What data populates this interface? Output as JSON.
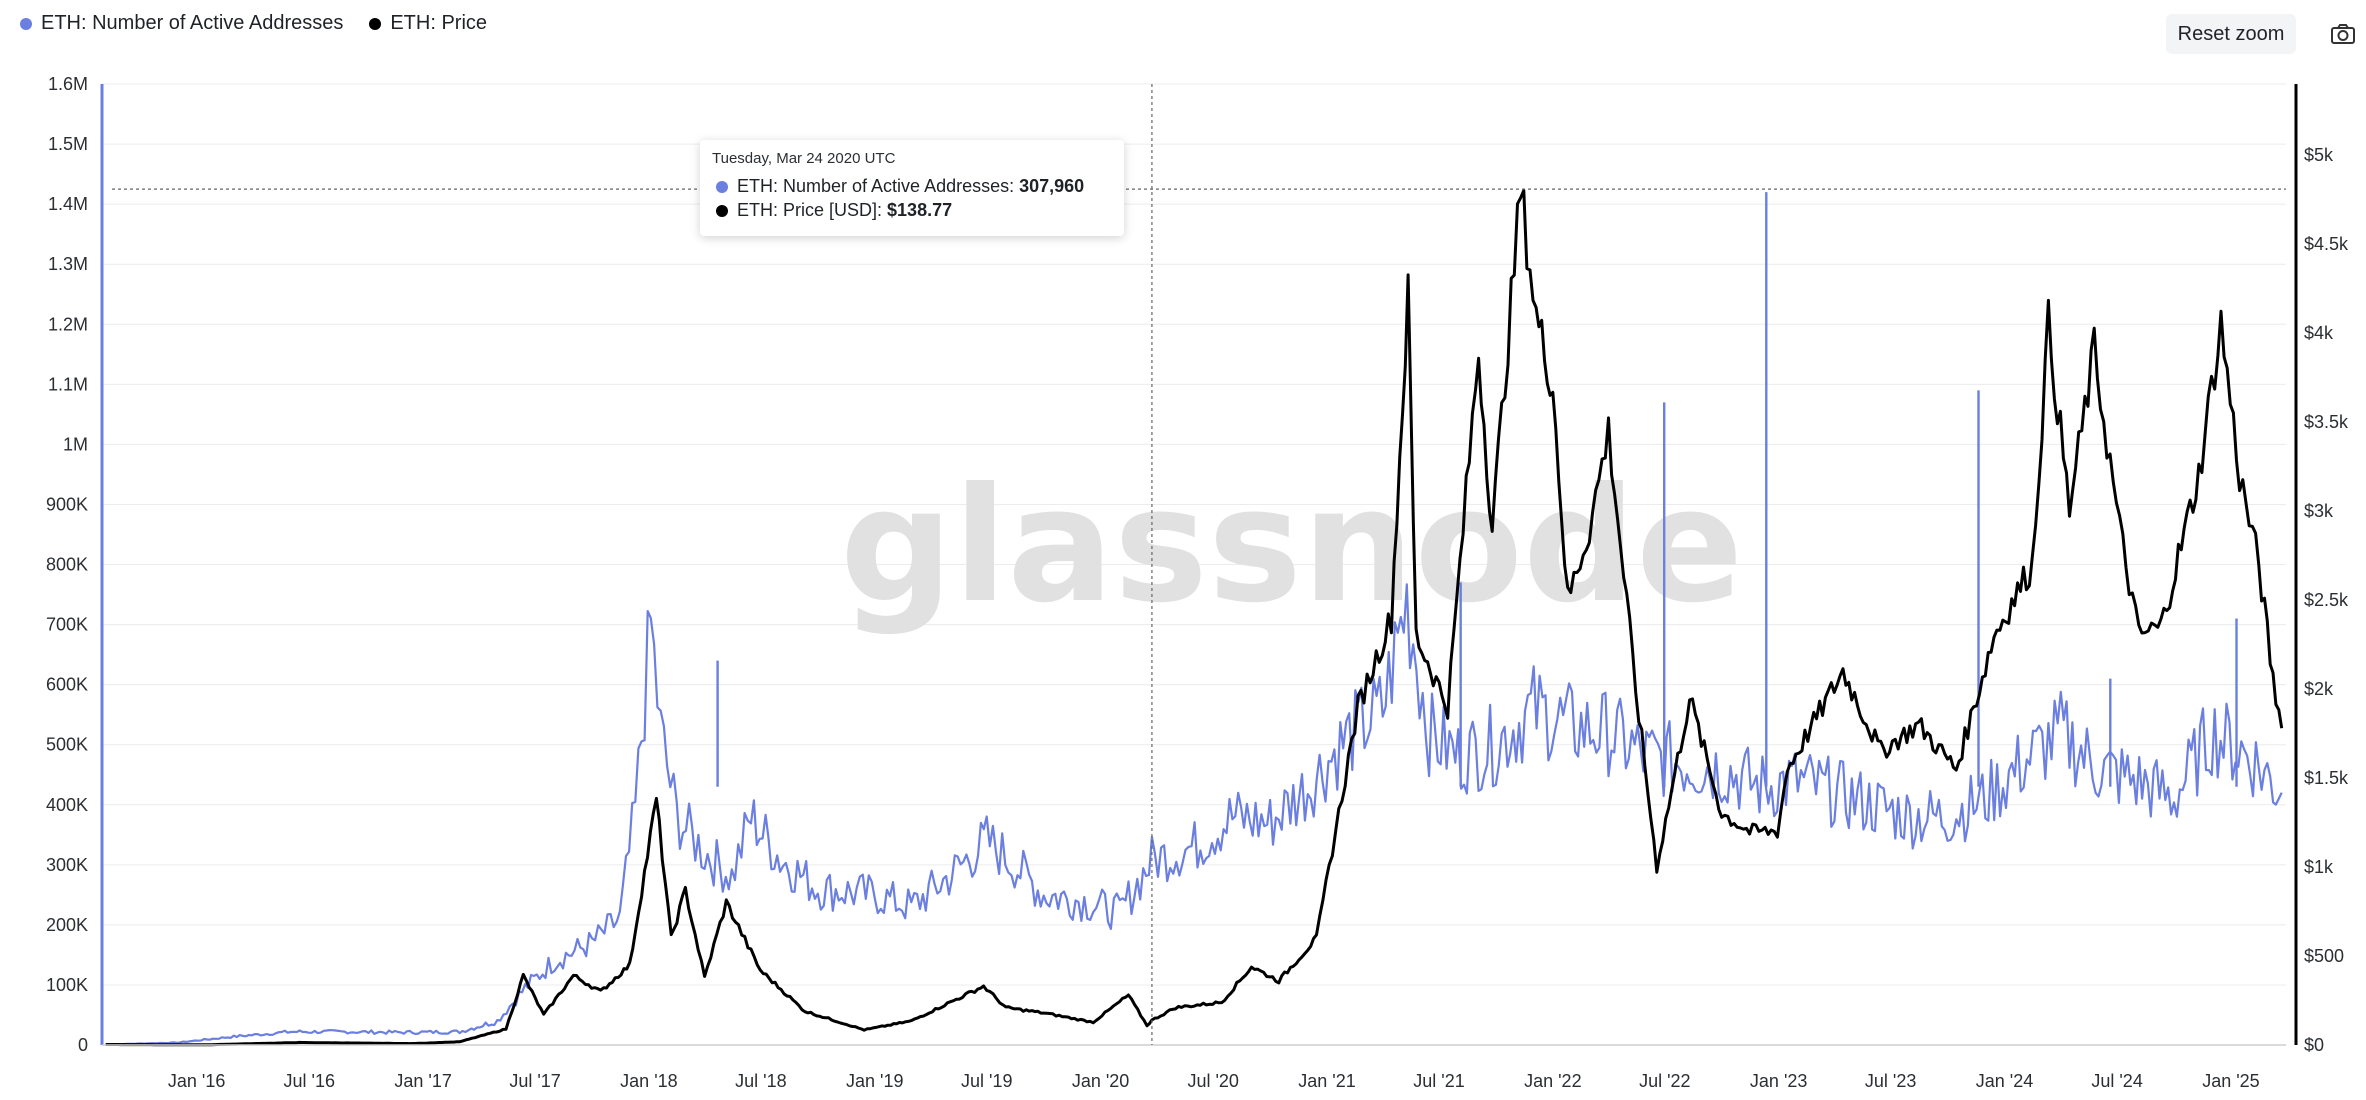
{
  "legend": {
    "items": [
      {
        "label": "ETH: Number of Active Addresses",
        "color": "#6b7fe0"
      },
      {
        "label": "ETH: Price",
        "color": "#000000"
      }
    ]
  },
  "toolbar": {
    "reset_zoom_label": "Reset zoom",
    "camera_icon": "camera-icon"
  },
  "watermark": "glassnode",
  "tooltip": {
    "date": "Tuesday, Mar 24 2020 UTC",
    "rows": [
      {
        "label": "ETH: Number of Active Addresses: ",
        "value": "307,960",
        "color": "#6b7fe0"
      },
      {
        "label": "ETH: Price [USD]: ",
        "value": "$138.77",
        "color": "#000000"
      }
    ]
  },
  "chart_data": {
    "type": "line",
    "title": "",
    "xlabel": "",
    "ylabel": "",
    "x_tick_labels": [
      "Jan '16",
      "Jul '16",
      "Jan '17",
      "Jul '17",
      "Jan '18",
      "Jul '18",
      "Jan '19",
      "Jul '19",
      "Jan '20",
      "Jul '20",
      "Jan '21",
      "Jul '21",
      "Jan '22",
      "Jul '22",
      "Jan '23",
      "Jul '23",
      "Jan '24",
      "Jul '24",
      "Jan '25"
    ],
    "x_range": [
      "2015-08-01",
      "2025-03-31"
    ],
    "y_left_ticks": [
      "0",
      "100K",
      "200K",
      "300K",
      "400K",
      "500K",
      "600K",
      "700K",
      "800K",
      "900K",
      "1M",
      "1.1M",
      "1.2M",
      "1.3M",
      "1.4M",
      "1.5M",
      "1.6M"
    ],
    "y_left_range": [
      0,
      1600000
    ],
    "y_right_ticks": [
      "$0",
      "$500",
      "$1k",
      "$1.5k",
      "$2k",
      "$2.5k",
      "$3k",
      "$3.5k",
      "$4k",
      "$4.5k",
      "$5k"
    ],
    "y_right_range": [
      0,
      5400
    ],
    "crosshair": {
      "date": "2020-03-24",
      "active_addresses": 307960,
      "price": 138.77
    },
    "legend_position": "top-left",
    "grid": true,
    "series": [
      {
        "name": "ETH: Number of Active Addresses",
        "axis": "left",
        "color": "#6b7fe0",
        "points": [
          [
            "2015-08-07",
            800
          ],
          [
            "2015-12-01",
            4000
          ],
          [
            "2016-03-01",
            14000
          ],
          [
            "2016-06-01",
            22000
          ],
          [
            "2016-09-01",
            22000
          ],
          [
            "2016-12-01",
            21000
          ],
          [
            "2017-03-01",
            22000
          ],
          [
            "2017-05-01",
            40000
          ],
          [
            "2017-06-15",
            95000
          ],
          [
            "2017-08-01",
            140000
          ],
          [
            "2017-10-01",
            170000
          ],
          [
            "2017-11-15",
            210000
          ],
          [
            "2017-12-10",
            390000
          ],
          [
            "2018-01-04",
            700000
          ],
          [
            "2018-01-20",
            520000
          ],
          [
            "2018-02-15",
            380000
          ],
          [
            "2018-04-01",
            320000
          ],
          [
            "2018-05-15",
            280000
          ],
          [
            "2018-06-15",
            380000
          ],
          [
            "2018-08-01",
            310000
          ],
          [
            "2018-10-01",
            260000
          ],
          [
            "2019-01-01",
            250000
          ],
          [
            "2019-03-01",
            230000
          ],
          [
            "2019-05-01",
            280000
          ],
          [
            "2019-07-01",
            340000
          ],
          [
            "2019-08-15",
            300000
          ],
          [
            "2019-10-01",
            250000
          ],
          [
            "2019-12-01",
            240000
          ],
          [
            "2020-02-01",
            220000
          ],
          [
            "2020-03-24",
            307960
          ],
          [
            "2020-06-01",
            330000
          ],
          [
            "2020-08-01",
            380000
          ],
          [
            "2020-10-01",
            370000
          ],
          [
            "2020-12-01",
            430000
          ],
          [
            "2021-02-01",
            510000
          ],
          [
            "2021-04-01",
            560000
          ],
          [
            "2021-05-10",
            740000
          ],
          [
            "2021-06-15",
            520000
          ],
          [
            "2021-08-01",
            480000
          ],
          [
            "2021-10-01",
            500000
          ],
          [
            "2021-12-01",
            560000
          ],
          [
            "2022-02-01",
            530000
          ],
          [
            "2022-04-01",
            520000
          ],
          [
            "2022-06-01",
            480000
          ],
          [
            "2022-08-01",
            470000
          ],
          [
            "2022-10-01",
            460000
          ],
          [
            "2022-12-01",
            430000
          ],
          [
            "2023-02-01",
            440000
          ],
          [
            "2023-04-01",
            420000
          ],
          [
            "2023-06-01",
            400000
          ],
          [
            "2023-08-01",
            380000
          ],
          [
            "2023-10-01",
            380000
          ],
          [
            "2023-12-01",
            410000
          ],
          [
            "2024-02-01",
            470000
          ],
          [
            "2024-04-01",
            520000
          ],
          [
            "2024-06-01",
            460000
          ],
          [
            "2024-08-01",
            440000
          ],
          [
            "2024-10-01",
            410000
          ],
          [
            "2024-12-01",
            520000
          ],
          [
            "2025-02-01",
            480000
          ],
          [
            "2025-03-24",
            420000
          ]
        ],
        "spikes": [
          [
            "2018-04-22",
            640000
          ],
          [
            "2021-08-05",
            770000
          ],
          [
            "2022-06-30",
            1070000
          ],
          [
            "2022-12-12",
            1420000
          ],
          [
            "2023-11-20",
            1090000
          ],
          [
            "2024-06-20",
            610000
          ],
          [
            "2025-01-10",
            710000
          ]
        ]
      },
      {
        "name": "ETH: Price",
        "axis": "right",
        "color": "#000000",
        "points": [
          [
            "2015-08-07",
            2.8
          ],
          [
            "2016-01-15",
            1.0
          ],
          [
            "2016-06-15",
            14
          ],
          [
            "2016-12-15",
            8
          ],
          [
            "2017-03-01",
            18
          ],
          [
            "2017-05-15",
            90
          ],
          [
            "2017-06-12",
            390
          ],
          [
            "2017-07-15",
            170
          ],
          [
            "2017-09-01",
            390
          ],
          [
            "2017-10-15",
            300
          ],
          [
            "2017-12-01",
            450
          ],
          [
            "2018-01-13",
            1380
          ],
          [
            "2018-02-06",
            600
          ],
          [
            "2018-03-01",
            870
          ],
          [
            "2018-04-01",
            380
          ],
          [
            "2018-05-06",
            800
          ],
          [
            "2018-06-30",
            420
          ],
          [
            "2018-09-10",
            190
          ],
          [
            "2018-12-15",
            85
          ],
          [
            "2019-03-01",
            135
          ],
          [
            "2019-06-26",
            330
          ],
          [
            "2019-08-01",
            210
          ],
          [
            "2019-10-01",
            180
          ],
          [
            "2019-12-20",
            128
          ],
          [
            "2020-02-15",
            280
          ],
          [
            "2020-03-16",
            110
          ],
          [
            "2020-03-24",
            138.77
          ],
          [
            "2020-05-01",
            210
          ],
          [
            "2020-07-15",
            240
          ],
          [
            "2020-09-01",
            440
          ],
          [
            "2020-10-15",
            360
          ],
          [
            "2020-12-15",
            600
          ],
          [
            "2021-01-20",
            1300
          ],
          [
            "2021-02-20",
            1900
          ],
          [
            "2021-04-15",
            2400
          ],
          [
            "2021-05-12",
            4200
          ],
          [
            "2021-05-25",
            2300
          ],
          [
            "2021-07-15",
            1900
          ],
          [
            "2021-09-03",
            3900
          ],
          [
            "2021-09-25",
            2900
          ],
          [
            "2021-11-10",
            4800
          ],
          [
            "2021-12-05",
            4100
          ],
          [
            "2022-01-01",
            3700
          ],
          [
            "2022-01-25",
            2500
          ],
          [
            "2022-03-01",
            2900
          ],
          [
            "2022-04-01",
            3450
          ],
          [
            "2022-05-15",
            2000
          ],
          [
            "2022-06-18",
            1000
          ],
          [
            "2022-08-10",
            1950
          ],
          [
            "2022-10-01",
            1300
          ],
          [
            "2022-11-15",
            1200
          ],
          [
            "2022-12-30",
            1200
          ],
          [
            "2023-01-15",
            1550
          ],
          [
            "2023-04-15",
            2100
          ],
          [
            "2023-06-15",
            1650
          ],
          [
            "2023-08-15",
            1800
          ],
          [
            "2023-10-15",
            1550
          ],
          [
            "2023-12-15",
            2300
          ],
          [
            "2024-02-15",
            2700
          ],
          [
            "2024-03-12",
            4050
          ],
          [
            "2024-04-15",
            3000
          ],
          [
            "2024-05-25",
            3900
          ],
          [
            "2024-07-05",
            2900
          ],
          [
            "2024-08-05",
            2300
          ],
          [
            "2024-09-10",
            2350
          ],
          [
            "2024-11-10",
            3200
          ],
          [
            "2024-12-16",
            4050
          ],
          [
            "2025-01-15",
            3200
          ],
          [
            "2025-02-15",
            2700
          ],
          [
            "2025-03-10",
            2050
          ],
          [
            "2025-03-24",
            1780
          ]
        ]
      }
    ]
  }
}
